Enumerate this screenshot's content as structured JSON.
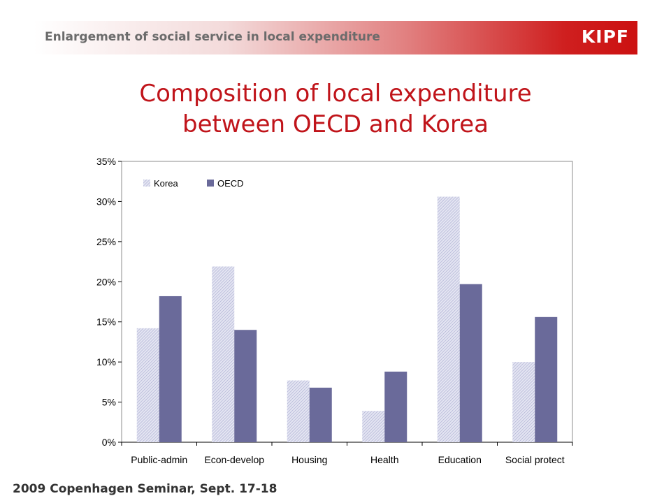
{
  "header": {
    "title": "Enlargement of social service in local expenditure",
    "logo": "KIPF"
  },
  "slide": {
    "title_line1": "Composition of local expenditure",
    "title_line2": "between OECD and Korea"
  },
  "footer": {
    "text": "2009 Copenhagen Seminar, Sept. 17-18"
  },
  "colors": {
    "header_accent": "#cc1111",
    "title": "#c0141a",
    "korea": "#c9cbe4",
    "oecd": "#6a6a9a"
  },
  "chart_data": {
    "type": "bar",
    "categories": [
      "Public-admin",
      "Econ-develop",
      "Housing",
      "Health",
      "Education",
      "Social protect"
    ],
    "series": [
      {
        "name": "Korea",
        "values": [
          14.2,
          21.9,
          7.7,
          3.9,
          30.6,
          10.0
        ]
      },
      {
        "name": "OECD",
        "values": [
          18.2,
          14.0,
          6.8,
          8.8,
          19.7,
          15.6
        ]
      }
    ],
    "y_ticks": [
      "0%",
      "5%",
      "10%",
      "15%",
      "20%",
      "25%",
      "30%",
      "35%"
    ],
    "ylim": [
      0,
      35
    ],
    "y_unit": "%",
    "grid": false,
    "legend_position": "top-left"
  }
}
